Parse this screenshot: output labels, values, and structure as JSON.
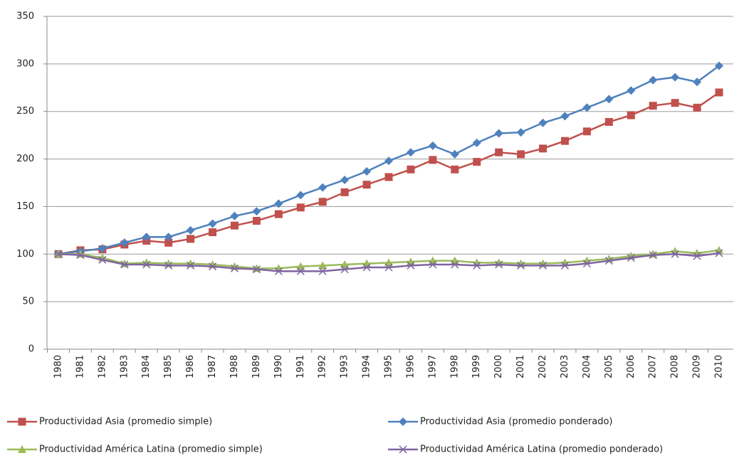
{
  "chart_data": {
    "type": "line",
    "categories": [
      "1980",
      "1981",
      "1982",
      "1983",
      "1984",
      "1985",
      "1986",
      "1987",
      "1988",
      "1989",
      "1990",
      "1991",
      "1992",
      "1993",
      "1994",
      "1995",
      "1996",
      "1997",
      "1998",
      "1999",
      "2000",
      "2001",
      "2002",
      "2003",
      "2004",
      "2005",
      "2006",
      "2007",
      "2008",
      "2009",
      "2010"
    ],
    "series": [
      {
        "name": "Productividad Asia (promedio simple)",
        "color": "#c0504d",
        "marker": "square",
        "values": [
          100,
          104,
          105,
          110,
          114,
          112,
          116,
          123,
          130,
          135,
          142,
          149,
          155,
          165,
          173,
          181,
          189,
          199,
          189,
          197,
          207,
          205,
          211,
          219,
          229,
          239,
          246,
          256,
          259,
          254,
          270
        ]
      },
      {
        "name": "Productividad Asia (promedio ponderado)",
        "color": "#4f81bd",
        "marker": "diamond",
        "values": [
          100,
          103,
          106,
          112,
          118,
          118,
          125,
          132,
          140,
          145,
          153,
          162,
          170,
          178,
          187,
          198,
          207,
          214,
          205,
          217,
          227,
          228,
          238,
          245,
          254,
          263,
          272,
          283,
          286,
          281,
          298
        ]
      },
      {
        "name": "Productividad América Latina (promedio simple)",
        "color": "#9bbb59",
        "marker": "triangle",
        "values": [
          100,
          100,
          96,
          90,
          91,
          90,
          90,
          89,
          87,
          85,
          85,
          87,
          88,
          89,
          90,
          91,
          92,
          93,
          93,
          91,
          91,
          90,
          90,
          91,
          93,
          95,
          98,
          100,
          103,
          101,
          104
        ]
      },
      {
        "name": "Productividad América Latina (promedio ponderado)",
        "color": "#8064a2",
        "marker": "x",
        "values": [
          100,
          99,
          94,
          89,
          89,
          88,
          88,
          87,
          85,
          84,
          82,
          82,
          82,
          84,
          86,
          86,
          88,
          89,
          89,
          88,
          89,
          88,
          88,
          88,
          90,
          93,
          96,
          99,
          100,
          98,
          101
        ]
      }
    ],
    "ylim": [
      0,
      350
    ],
    "yticks": [
      0,
      50,
      100,
      150,
      200,
      250,
      300,
      350
    ],
    "grid": true
  }
}
